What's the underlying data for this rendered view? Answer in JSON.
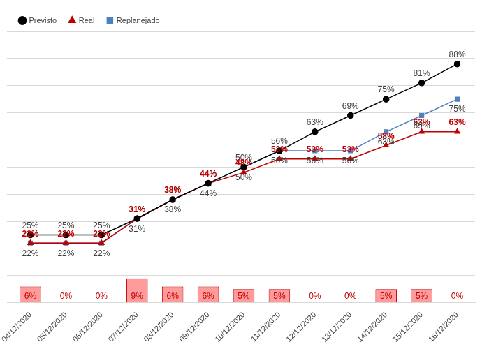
{
  "chart_data": {
    "type": "line",
    "categories": [
      "04/12/2020",
      "05/12/2020",
      "06/12/2020",
      "07/12/2020",
      "08/12/2020",
      "09/12/2020",
      "10/12/2020",
      "11/12/2020",
      "12/12/2020",
      "13/12/2020",
      "14/12/2020",
      "15/12/2020",
      "16/12/2020"
    ],
    "series": [
      {
        "name": "Previsto",
        "type": "line",
        "color": "#000000",
        "marker": "circle",
        "line_style": "solid",
        "values": [
          25,
          25,
          25,
          31,
          38,
          44,
          50,
          56,
          63,
          69,
          75,
          81,
          88
        ],
        "value_labels": [
          "25%",
          "25%",
          "25%",
          "31%",
          "38%",
          "44%",
          "50%",
          "56%",
          "63%",
          "69%",
          "75%",
          "81%",
          "88%"
        ]
      },
      {
        "name": "Real",
        "type": "line",
        "color": "#c00000",
        "marker": "triangle",
        "line_style": "solid",
        "values": [
          22,
          22,
          22,
          31,
          38,
          44,
          48,
          53,
          53,
          53,
          58,
          63,
          63
        ],
        "value_labels": [
          "22%",
          "22%",
          "22%",
          "31%",
          "38%",
          "44%",
          "48%",
          "53%",
          "53%",
          "53%",
          "58%",
          "63%",
          "63%"
        ]
      },
      {
        "name": "Replanejado",
        "type": "line",
        "color": "#4f81bd",
        "marker": "square",
        "line_style": "solid",
        "values": [
          22,
          22,
          22,
          31,
          38,
          44,
          50,
          56,
          56,
          56,
          63,
          69,
          75
        ],
        "value_labels": [
          "22%",
          "22%",
          "22%",
          "31%",
          "38%",
          "44%",
          "50%",
          "56%",
          "56%",
          "56%",
          "63%",
          "69%",
          "75%"
        ]
      },
      {
        "type": "bar",
        "color": "#ff9b9b",
        "values": [
          6,
          0,
          0,
          9,
          6,
          6,
          5,
          5,
          0,
          0,
          5,
          5,
          0
        ],
        "value_labels": [
          "6%",
          "0%",
          "0%",
          "9%",
          "6%",
          "6%",
          "5%",
          "5%",
          "0%",
          "0%",
          "5%",
          "5%",
          "0%"
        ]
      }
    ],
    "ylim": [
      0,
      100
    ],
    "yticks": [
      0,
      10,
      20,
      30,
      40,
      50,
      60,
      70,
      80,
      90,
      100
    ],
    "grid": true,
    "legend": "top-left",
    "data_labels": true,
    "tick_labels": "x"
  }
}
